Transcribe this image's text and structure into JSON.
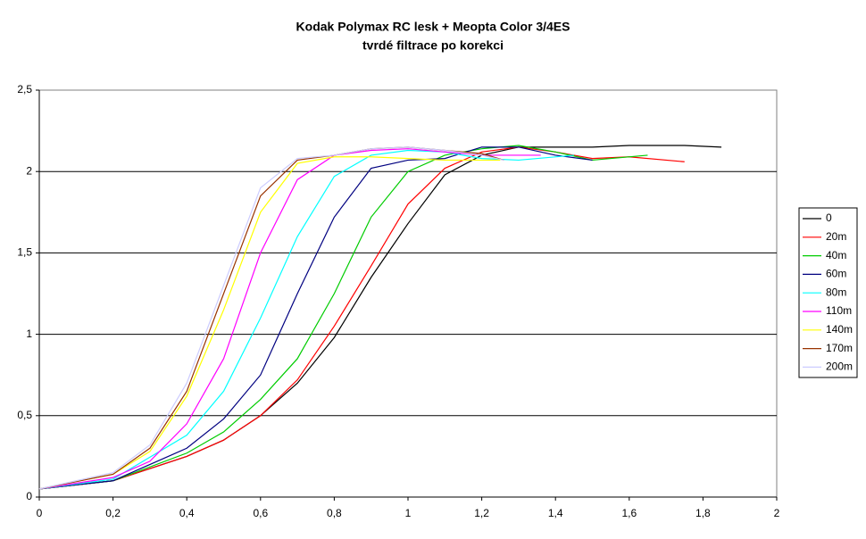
{
  "chart_data": {
    "type": "line",
    "title": "Kodak Polymax RC lesk + Meopta Color 3/4ES",
    "subtitle": "tvrdé filtrace po korekci",
    "xlim": [
      0,
      2
    ],
    "ylim": [
      0,
      2.5
    ],
    "xticks": [
      0,
      {
        "value": 0.2,
        "label": "0,2"
      },
      {
        "value": 0.4,
        "label": "0,4"
      },
      {
        "value": 0.6,
        "label": "0,6"
      },
      {
        "value": 0.8,
        "label": "0,8"
      },
      1,
      {
        "value": 1.2,
        "label": "1,2"
      },
      {
        "value": 1.4,
        "label": "1,4"
      },
      {
        "value": 1.6,
        "label": "1,6"
      },
      {
        "value": 1.8,
        "label": "1,8"
      },
      2
    ],
    "yticks": [
      0,
      {
        "value": 0.5,
        "label": "0,5"
      },
      1,
      {
        "value": 1.5,
        "label": "1,5"
      },
      2,
      {
        "value": 2.5,
        "label": "2,5"
      }
    ],
    "grid": true,
    "legend": "right",
    "series": [
      {
        "name": "0",
        "color": "#000000",
        "x": [
          0,
          0.2,
          0.4,
          0.5,
          0.6,
          0.7,
          0.8,
          0.9,
          1.0,
          1.1,
          1.2,
          1.3,
          1.5,
          1.6,
          1.75,
          1.85
        ],
        "values": [
          0.05,
          0.1,
          0.25,
          0.35,
          0.5,
          0.7,
          0.98,
          1.35,
          1.68,
          1.98,
          2.1,
          2.15,
          2.15,
          2.16,
          2.16,
          2.15
        ]
      },
      {
        "name": "20m",
        "color": "#ff0000",
        "x": [
          0,
          0.2,
          0.4,
          0.5,
          0.6,
          0.7,
          0.8,
          0.9,
          1.0,
          1.1,
          1.2,
          1.3,
          1.4,
          1.5,
          1.6,
          1.75
        ],
        "values": [
          0.05,
          0.1,
          0.25,
          0.35,
          0.5,
          0.72,
          1.05,
          1.42,
          1.8,
          2.02,
          2.12,
          2.15,
          2.12,
          2.08,
          2.09,
          2.06
        ]
      },
      {
        "name": "40m",
        "color": "#00cc00",
        "x": [
          0,
          0.2,
          0.4,
          0.5,
          0.6,
          0.7,
          0.8,
          0.9,
          1.0,
          1.1,
          1.2,
          1.3,
          1.4,
          1.5,
          1.65
        ],
        "values": [
          0.05,
          0.1,
          0.27,
          0.4,
          0.6,
          0.85,
          1.25,
          1.72,
          2.0,
          2.1,
          2.14,
          2.16,
          2.12,
          2.07,
          2.1
        ]
      },
      {
        "name": "60m",
        "color": "#000080",
        "x": [
          0,
          0.2,
          0.4,
          0.5,
          0.6,
          0.7,
          0.8,
          0.9,
          1.0,
          1.1,
          1.2,
          1.3,
          1.4,
          1.5
        ],
        "values": [
          0.05,
          0.1,
          0.3,
          0.48,
          0.75,
          1.25,
          1.72,
          2.02,
          2.07,
          2.08,
          2.15,
          2.15,
          2.1,
          2.07
        ]
      },
      {
        "name": "80m",
        "color": "#00ffff",
        "x": [
          0,
          0.2,
          0.4,
          0.5,
          0.6,
          0.7,
          0.8,
          0.9,
          1.0,
          1.1,
          1.2,
          1.3,
          1.45
        ],
        "values": [
          0.05,
          0.11,
          0.38,
          0.65,
          1.1,
          1.6,
          1.97,
          2.1,
          2.13,
          2.12,
          2.08,
          2.07,
          2.1
        ]
      },
      {
        "name": "110m",
        "color": "#ff00ff",
        "x": [
          0,
          0.2,
          0.3,
          0.4,
          0.5,
          0.6,
          0.7,
          0.8,
          0.9,
          1.0,
          1.1,
          1.2,
          1.36
        ],
        "values": [
          0.05,
          0.12,
          0.22,
          0.45,
          0.85,
          1.5,
          1.95,
          2.1,
          2.13,
          2.14,
          2.12,
          2.1,
          2.1
        ]
      },
      {
        "name": "140m",
        "color": "#ffff00",
        "x": [
          0,
          0.2,
          0.3,
          0.4,
          0.5,
          0.6,
          0.7,
          0.8,
          0.9,
          1.0,
          1.1,
          1.25
        ],
        "values": [
          0.05,
          0.14,
          0.28,
          0.62,
          1.15,
          1.75,
          2.05,
          2.09,
          2.09,
          2.08,
          2.07,
          2.07
        ]
      },
      {
        "name": "170m",
        "color": "#993300",
        "x": [
          0,
          0.2,
          0.3,
          0.4,
          0.5,
          0.6,
          0.7,
          0.8,
          0.9,
          1.0,
          1.1,
          1.2,
          1.26
        ],
        "values": [
          0.05,
          0.14,
          0.3,
          0.65,
          1.25,
          1.85,
          2.07,
          2.1,
          2.14,
          2.15,
          2.13,
          2.11,
          2.07
        ]
      },
      {
        "name": "200m",
        "color": "#ccccff",
        "x": [
          0,
          0.2,
          0.3,
          0.4,
          0.5,
          0.6,
          0.7,
          0.8,
          0.9,
          1.0,
          1.1,
          1.2,
          1.26
        ],
        "values": [
          0.05,
          0.15,
          0.32,
          0.7,
          1.3,
          1.9,
          2.08,
          2.1,
          2.14,
          2.15,
          2.13,
          2.1,
          2.07
        ]
      }
    ]
  }
}
